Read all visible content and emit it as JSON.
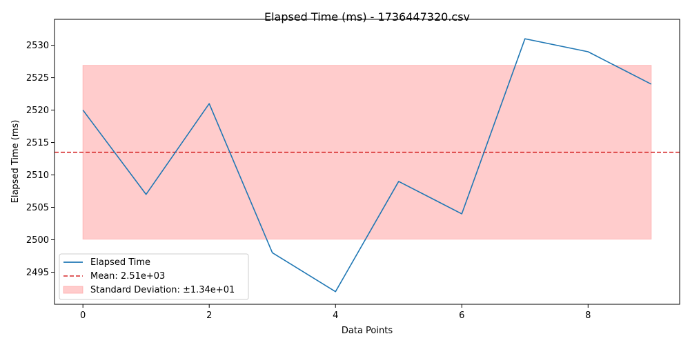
{
  "chart_data": {
    "type": "line",
    "title": "Elapsed Time (ms) - 1736447320.csv",
    "xlabel": "Data Points",
    "ylabel": "Elapsed Time (ms)",
    "xlim": [
      -0.45,
      9.45
    ],
    "ylim": [
      2490.05,
      2534.0
    ],
    "x_ticks": [
      0,
      2,
      4,
      6,
      8
    ],
    "y_ticks": [
      2495,
      2500,
      2505,
      2510,
      2515,
      2520,
      2525,
      2530
    ],
    "grid": false,
    "legend_position": "lower-left",
    "series": [
      {
        "name": "Elapsed Time",
        "color": "#1f77b4",
        "x": [
          0,
          1,
          2,
          3,
          4,
          5,
          6,
          7,
          8,
          9
        ],
        "values": [
          2520,
          2507,
          2521,
          2498,
          2492,
          2509,
          2504,
          2531,
          2529,
          2524
        ]
      }
    ],
    "mean": {
      "label": "Mean: 2.51e+03",
      "value": 2513.5,
      "color": "#d62728"
    },
    "std_band": {
      "label": "Standard Deviation: ±1.34e+01",
      "lower": 2500.1,
      "upper": 2526.9,
      "x_range": [
        0,
        9
      ],
      "color": "#ff9999"
    }
  }
}
